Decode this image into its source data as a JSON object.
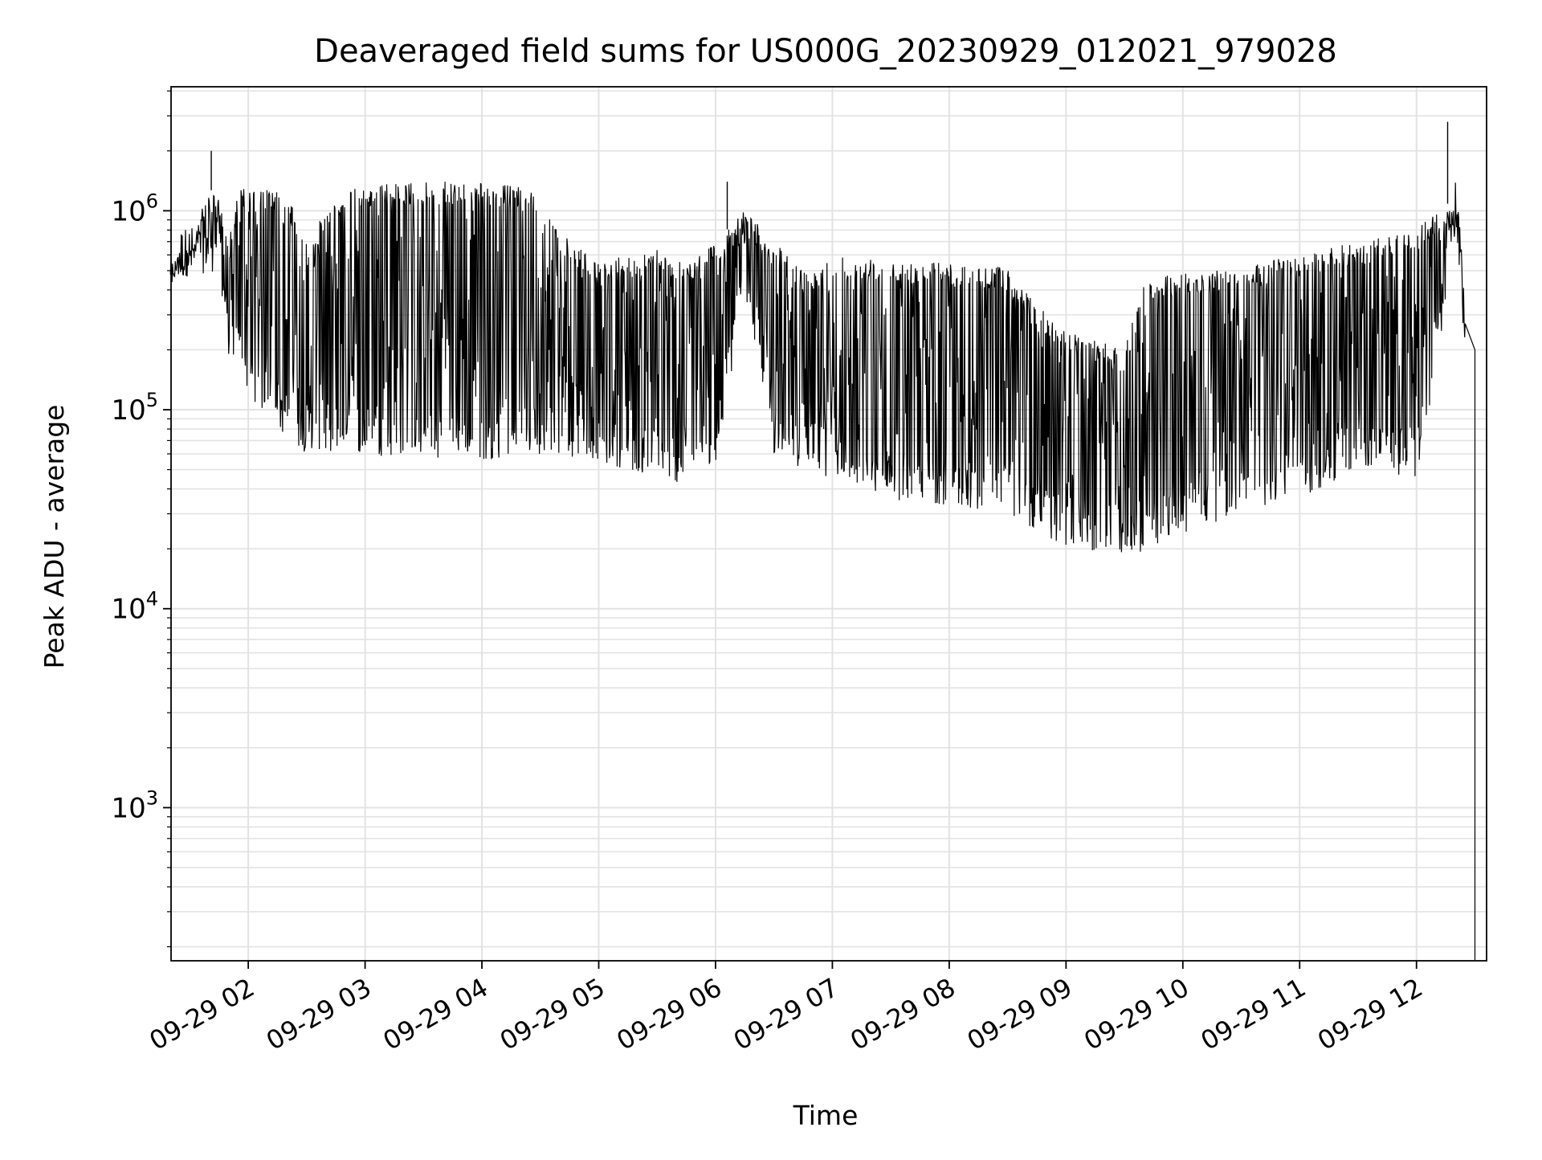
{
  "chart_data": {
    "type": "line",
    "title": "Deaveraged field sums for US000G_20230929_012021_979028",
    "xlabel": "Time",
    "ylabel": "Peak ADU - average",
    "yscale": "log",
    "grid": true,
    "legend": "none",
    "xlim": [
      "2023-09-29T01:20:21",
      "2023-09-29T12:36:00"
    ],
    "ylim": [
      170,
      4200000
    ],
    "x_ticks": [
      {
        "value": "2023-09-29T02:00",
        "label": "09-29 02"
      },
      {
        "value": "2023-09-29T03:00",
        "label": "09-29 03"
      },
      {
        "value": "2023-09-29T04:00",
        "label": "09-29 04"
      },
      {
        "value": "2023-09-29T05:00",
        "label": "09-29 05"
      },
      {
        "value": "2023-09-29T06:00",
        "label": "09-29 06"
      },
      {
        "value": "2023-09-29T07:00",
        "label": "09-29 07"
      },
      {
        "value": "2023-09-29T08:00",
        "label": "09-29 08"
      },
      {
        "value": "2023-09-29T09:00",
        "label": "09-29 09"
      },
      {
        "value": "2023-09-29T10:00",
        "label": "09-29 10"
      },
      {
        "value": "2023-09-29T11:00",
        "label": "09-29 11"
      },
      {
        "value": "2023-09-29T12:00",
        "label": "09-29 12"
      }
    ],
    "y_ticks": [
      {
        "value": 1000,
        "base": "10",
        "exp": "3"
      },
      {
        "value": 10000,
        "base": "10",
        "exp": "4"
      },
      {
        "value": 100000,
        "base": "10",
        "exp": "5"
      },
      {
        "value": 1000000,
        "base": "10",
        "exp": "6"
      }
    ],
    "series": [
      {
        "line_color": "#000000",
        "envelope_upper": [
          [
            "2023-09-29T01:20",
            550000
          ],
          [
            "2023-09-29T01:30",
            680000
          ],
          [
            "2023-09-29T01:40",
            1300000
          ],
          [
            "2023-09-29T01:45",
            1150000
          ],
          [
            "2023-09-29T01:50",
            700000
          ],
          [
            "2023-09-29T01:55",
            1300000
          ],
          [
            "2023-09-29T02:10",
            1300000
          ],
          [
            "2023-09-29T02:20",
            1200000
          ],
          [
            "2023-09-29T02:30",
            700000
          ],
          [
            "2023-09-29T02:45",
            1200000
          ],
          [
            "2023-09-29T03:00",
            1350000
          ],
          [
            "2023-09-29T03:30",
            1400000
          ],
          [
            "2023-09-29T04:00",
            1400000
          ],
          [
            "2023-09-29T04:25",
            1300000
          ],
          [
            "2023-09-29T04:45",
            700000
          ],
          [
            "2023-09-29T05:00",
            550000
          ],
          [
            "2023-09-29T05:30",
            650000
          ],
          [
            "2023-09-29T05:45",
            550000
          ],
          [
            "2023-09-29T06:00",
            700000
          ],
          [
            "2023-09-29T06:15",
            1000000
          ],
          [
            "2023-09-29T06:30",
            700000
          ],
          [
            "2023-09-29T06:45",
            500000
          ],
          [
            "2023-09-29T07:00",
            600000
          ],
          [
            "2023-09-29T07:30",
            580000
          ],
          [
            "2023-09-29T08:00",
            550000
          ],
          [
            "2023-09-29T08:30",
            520000
          ],
          [
            "2023-09-29T08:45",
            350000
          ],
          [
            "2023-09-29T09:00",
            250000
          ],
          [
            "2023-09-29T09:30",
            200000
          ],
          [
            "2023-09-29T09:40",
            450000
          ],
          [
            "2023-09-29T10:00",
            500000
          ],
          [
            "2023-09-29T10:30",
            500000
          ],
          [
            "2023-09-29T10:40",
            550000
          ],
          [
            "2023-09-29T11:00",
            600000
          ],
          [
            "2023-09-29T11:30",
            700000
          ],
          [
            "2023-09-29T12:00",
            800000
          ],
          [
            "2023-09-29T12:15",
            1100000
          ],
          [
            "2023-09-29T12:22",
            1000000
          ],
          [
            "2023-09-29T12:25",
            300000
          ]
        ],
        "envelope_lower": [
          [
            "2023-09-29T01:20",
            450000
          ],
          [
            "2023-09-29T01:45",
            500000
          ],
          [
            "2023-09-29T01:50",
            180000
          ],
          [
            "2023-09-29T02:00",
            120000
          ],
          [
            "2023-09-29T02:15",
            80000
          ],
          [
            "2023-09-29T02:30",
            60000
          ],
          [
            "2023-09-29T03:00",
            60000
          ],
          [
            "2023-09-29T03:30",
            55000
          ],
          [
            "2023-09-29T04:00",
            55000
          ],
          [
            "2023-09-29T04:30",
            60000
          ],
          [
            "2023-09-29T05:00",
            55000
          ],
          [
            "2023-09-29T05:30",
            45000
          ],
          [
            "2023-09-29T05:45",
            42000
          ],
          [
            "2023-09-29T06:00",
            50000
          ],
          [
            "2023-09-29T06:15",
            400000
          ],
          [
            "2023-09-29T06:30",
            60000
          ],
          [
            "2023-09-29T06:45",
            50000
          ],
          [
            "2023-09-29T07:00",
            45000
          ],
          [
            "2023-09-29T07:30",
            35000
          ],
          [
            "2023-09-29T08:00",
            33000
          ],
          [
            "2023-09-29T08:30",
            30000
          ],
          [
            "2023-09-29T09:00",
            20000
          ],
          [
            "2023-09-29T09:30",
            18000
          ],
          [
            "2023-09-29T09:50",
            20000
          ],
          [
            "2023-09-29T10:00",
            24000
          ],
          [
            "2023-09-29T10:30",
            30000
          ],
          [
            "2023-09-29T11:00",
            35000
          ],
          [
            "2023-09-29T11:15",
            42000
          ],
          [
            "2023-09-29T11:30",
            50000
          ],
          [
            "2023-09-29T12:00",
            45000
          ],
          [
            "2023-09-29T12:10",
            150000
          ],
          [
            "2023-09-29T12:20",
            800000
          ],
          [
            "2023-09-29T12:25",
            200000
          ]
        ],
        "peaks": [
          [
            "2023-09-29T01:41",
            2000000
          ],
          [
            "2023-09-29T06:06",
            1400000
          ],
          [
            "2023-09-29T12:16",
            2800000
          ]
        ],
        "final_drop_time": "2023-09-29T12:30"
      }
    ]
  }
}
